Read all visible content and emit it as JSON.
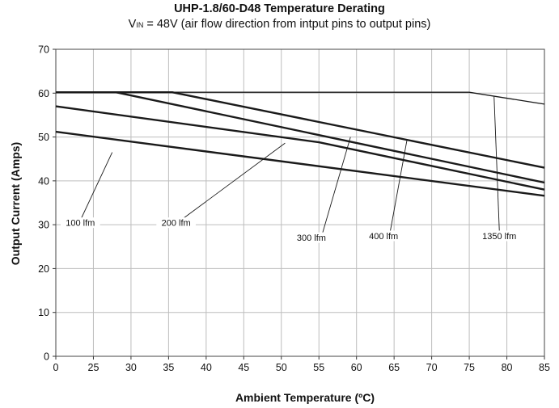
{
  "chart_data": {
    "type": "line",
    "title": "UHP-1.8/60-D48 Temperature Derating",
    "subtitle_prefix": "V",
    "subtitle_sub": "IN",
    "subtitle_rest": " = 48V (air flow direction from intput pins to output pins)",
    "xlabel": "Ambient Temperature (ºC)",
    "ylabel": "Output Current (Amps)",
    "xlim": [
      0,
      85
    ],
    "ylim": [
      0,
      70
    ],
    "xticks": [
      0,
      25,
      30,
      35,
      40,
      45,
      50,
      55,
      60,
      65,
      70,
      75,
      80,
      85
    ],
    "yticks": [
      0,
      10,
      20,
      30,
      40,
      50,
      60,
      70
    ],
    "grid": true,
    "series": [
      {
        "name": "100 lfm",
        "x": [
          0,
          85
        ],
        "y": [
          51.2,
          36.6
        ]
      },
      {
        "name": "200 lfm",
        "x": [
          0,
          55,
          85
        ],
        "y": [
          57.0,
          48.8,
          38.0
        ]
      },
      {
        "name": "300 lfm",
        "x": [
          0,
          28,
          85
        ],
        "y": [
          60.2,
          60.2,
          39.6
        ]
      },
      {
        "name": "400 lfm",
        "x": [
          0,
          35.5,
          85
        ],
        "y": [
          60.2,
          60.2,
          43.0
        ]
      },
      {
        "name": "1350 lfm",
        "x": [
          0,
          75,
          85
        ],
        "y": [
          60.2,
          60.2,
          57.5
        ]
      }
    ],
    "annotations": [
      {
        "label": "100 lfm",
        "text_x": 16.3,
        "text_y": 30.0,
        "line": [
          [
            17,
            31.5
          ],
          [
            27.5,
            46.5
          ]
        ]
      },
      {
        "label": "200 lfm",
        "text_x": 36.0,
        "text_y": 30.0,
        "line": [
          [
            37,
            31.5
          ],
          [
            50.5,
            48.6
          ]
        ]
      },
      {
        "label": "300 lfm",
        "text_x": 54.0,
        "text_y": 26.6,
        "line": [
          [
            55.5,
            28.2
          ],
          [
            59.2,
            50.0
          ]
        ]
      },
      {
        "label": "400 lfm",
        "text_x": 63.6,
        "text_y": 27.0,
        "line": [
          [
            64.5,
            28.6
          ],
          [
            66.7,
            49.2
          ]
        ]
      },
      {
        "label": "1350 lfm",
        "text_x": 79.0,
        "text_y": 27.0,
        "line": [
          [
            79.0,
            28.6
          ],
          [
            78.3,
            59.2
          ]
        ]
      }
    ]
  }
}
